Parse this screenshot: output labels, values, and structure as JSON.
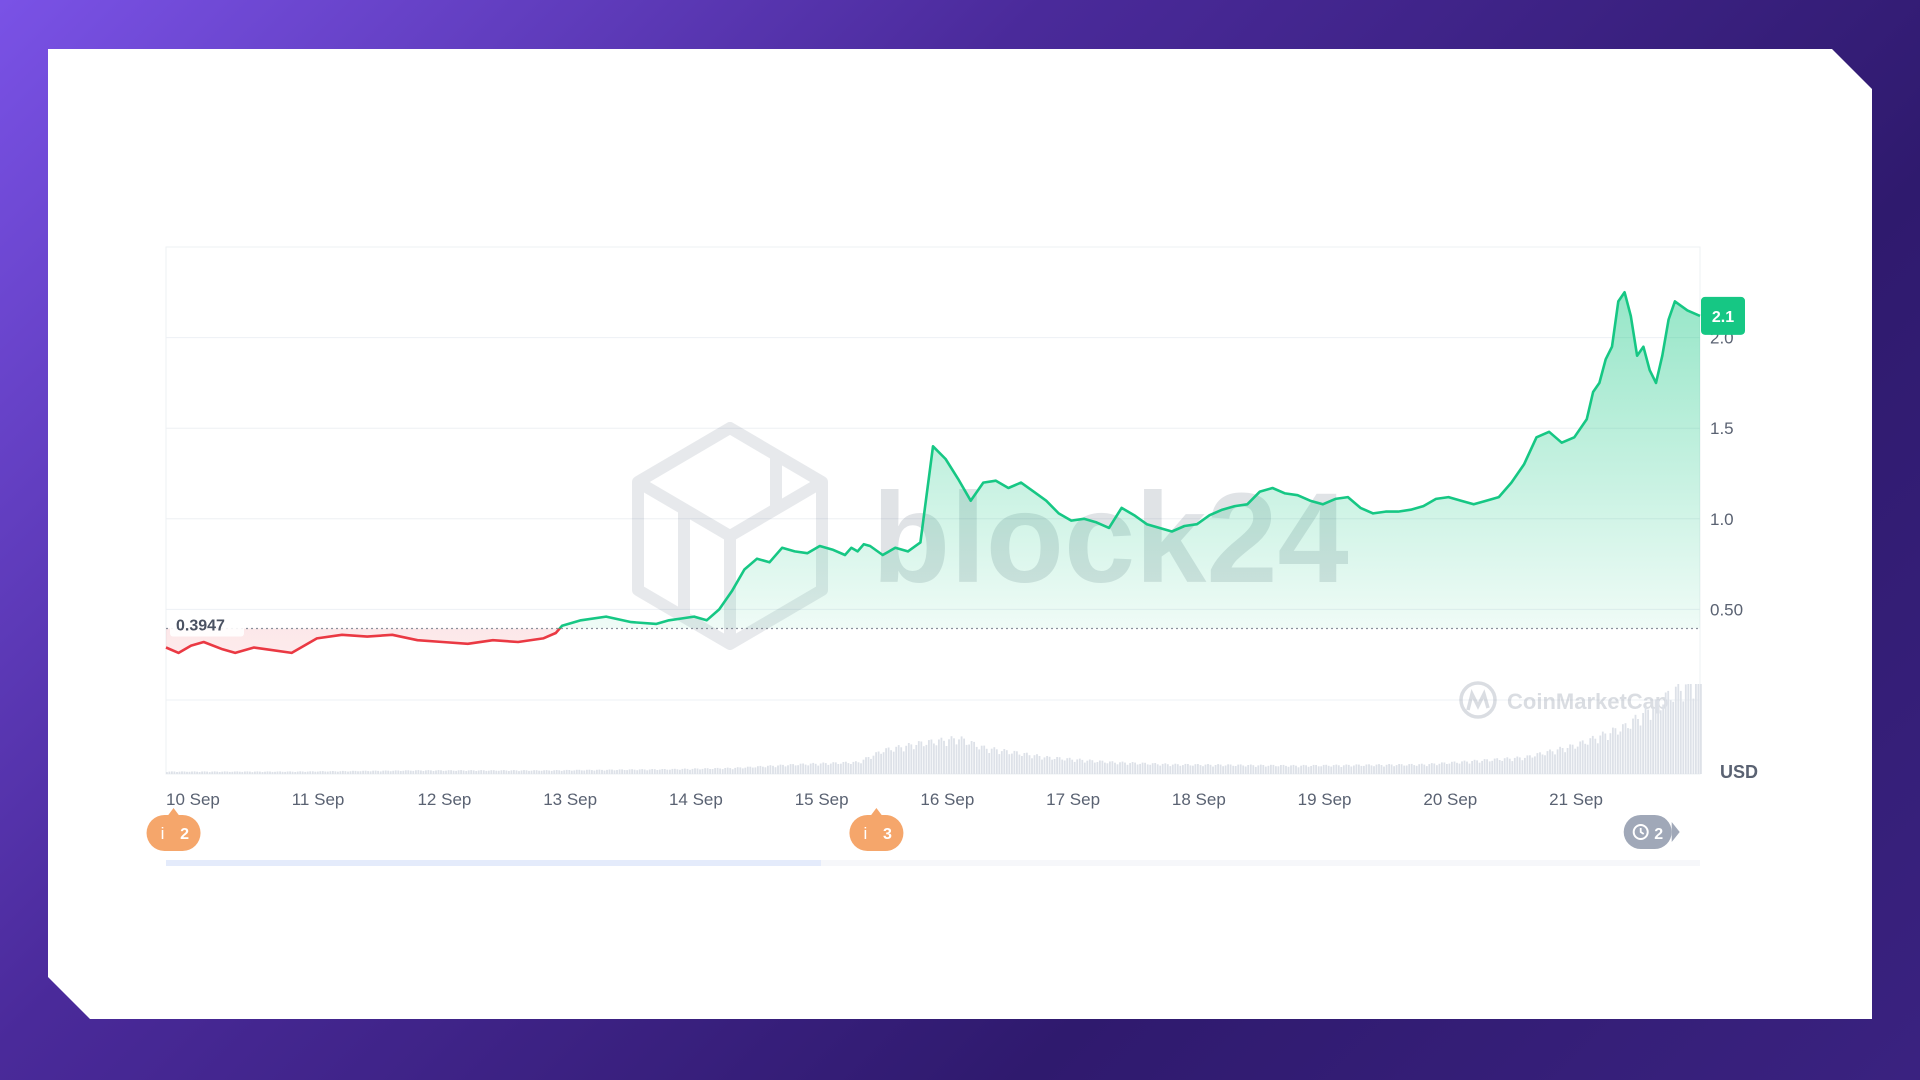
{
  "branding": {
    "watermark_text": "block24",
    "watermark_logo": "block24-hexagon-logo",
    "source_logo_icon": "coinmarketcap-icon",
    "source_logo_text": "CoinMarketCap"
  },
  "chart_data": {
    "type": "area",
    "title": "",
    "xlabel": "",
    "ylabel": "",
    "currency_label": "USD",
    "x_ticks": [
      "10 Sep",
      "11 Sep",
      "12 Sep",
      "13 Sep",
      "14 Sep",
      "15 Sep",
      "16 Sep",
      "17 Sep",
      "18 Sep",
      "19 Sep",
      "20 Sep",
      "21 Sep"
    ],
    "y_ticks": [
      "0.50",
      "1.0",
      "1.5",
      "2.0"
    ],
    "y_tick_values": [
      0.5,
      1.0,
      1.5,
      2.0
    ],
    "ylim": [
      0,
      2.5
    ],
    "xlim": [
      0,
      12.2
    ],
    "baseline_value": 0.3947,
    "baseline_label": "0.3947",
    "current_value_label": "2.1",
    "current_value": 2.12,
    "grid": true,
    "colors": {
      "above_baseline": "#16c784",
      "below_baseline": "#ea3943",
      "current_badge": "#16c784",
      "event_marker": "#f5a66b",
      "clock_marker": "#a0a8b8"
    },
    "series": [
      {
        "x": [
          0,
          0.1,
          0.2,
          0.3,
          0.45,
          0.55,
          0.7,
          0.8,
          1.0,
          1.2,
          1.4,
          1.6,
          1.8,
          2.0,
          2.2,
          2.4,
          2.6,
          2.8,
          3.0,
          3.1,
          3.15,
          3.3,
          3.5,
          3.7,
          3.9,
          4.0,
          4.1,
          4.2,
          4.3,
          4.4,
          4.5,
          4.6,
          4.7,
          4.8,
          4.9,
          5.0,
          5.1,
          5.2,
          5.3,
          5.4,
          5.45,
          5.5,
          5.55,
          5.6,
          5.7,
          5.8,
          5.9,
          6.0,
          6.1,
          6.2,
          6.3,
          6.4,
          6.5,
          6.6,
          6.7,
          6.8,
          6.9,
          7.0,
          7.1,
          7.2,
          7.3,
          7.4,
          7.5,
          7.6,
          7.7,
          7.8,
          7.9,
          8.0,
          8.1,
          8.2,
          8.3,
          8.4,
          8.5,
          8.6,
          8.7,
          8.8,
          8.9,
          9.0,
          9.1,
          9.2,
          9.3,
          9.4,
          9.5,
          9.6,
          9.7,
          9.8,
          9.9,
          10.0,
          10.1,
          10.2,
          10.3,
          10.4,
          10.5,
          10.6,
          10.7,
          10.8,
          10.9,
          11.0,
          11.1,
          11.2,
          11.3,
          11.35,
          11.4,
          11.45,
          11.5,
          11.55,
          11.6,
          11.65,
          11.7,
          11.75,
          11.8,
          11.85,
          11.9,
          11.95,
          12.0,
          12.1,
          12.2
        ],
        "values": [
          0.29,
          0.26,
          0.3,
          0.32,
          0.28,
          0.26,
          0.29,
          0.28,
          0.26,
          0.34,
          0.36,
          0.35,
          0.36,
          0.33,
          0.32,
          0.31,
          0.33,
          0.32,
          0.34,
          0.37,
          0.41,
          0.44,
          0.46,
          0.43,
          0.42,
          0.44,
          0.45,
          0.46,
          0.44,
          0.5,
          0.6,
          0.72,
          0.78,
          0.76,
          0.84,
          0.82,
          0.81,
          0.85,
          0.83,
          0.8,
          0.84,
          0.82,
          0.86,
          0.85,
          0.8,
          0.84,
          0.82,
          0.87,
          1.4,
          1.33,
          1.22,
          1.1,
          1.2,
          1.21,
          1.17,
          1.2,
          1.15,
          1.1,
          1.03,
          0.99,
          1.0,
          0.98,
          0.95,
          1.06,
          1.02,
          0.97,
          0.95,
          0.93,
          0.96,
          0.97,
          1.02,
          1.05,
          1.07,
          1.08,
          1.15,
          1.17,
          1.14,
          1.13,
          1.1,
          1.08,
          1.11,
          1.12,
          1.06,
          1.03,
          1.04,
          1.04,
          1.05,
          1.07,
          1.11,
          1.12,
          1.1,
          1.08,
          1.1,
          1.12,
          1.2,
          1.3,
          1.45,
          1.48,
          1.42,
          1.45,
          1.55,
          1.7,
          1.75,
          1.88,
          1.95,
          2.2,
          2.25,
          2.12,
          1.9,
          1.95,
          1.82,
          1.75,
          1.9,
          2.1,
          2.2,
          2.15,
          2.12
        ]
      }
    ],
    "volume": {
      "x": [
        0,
        1,
        2,
        3,
        4,
        4.5,
        5.0,
        5.5,
        5.7,
        6.0,
        6.3,
        6.5,
        7.0,
        7.5,
        8.0,
        9.0,
        10.0,
        10.8,
        11.2,
        11.6,
        12.0,
        12.2
      ],
      "values": [
        0.01,
        0.01,
        0.015,
        0.015,
        0.02,
        0.025,
        0.04,
        0.05,
        0.1,
        0.13,
        0.15,
        0.11,
        0.07,
        0.05,
        0.04,
        0.035,
        0.04,
        0.07,
        0.12,
        0.2,
        0.35,
        0.4
      ]
    },
    "event_markers": [
      {
        "x": 0.06,
        "label": "2",
        "icon": "info-icon"
      },
      {
        "x": 5.65,
        "label": "3",
        "icon": "info-icon"
      },
      {
        "x": 11.8,
        "label": "2",
        "icon": "clock-icon"
      }
    ]
  }
}
